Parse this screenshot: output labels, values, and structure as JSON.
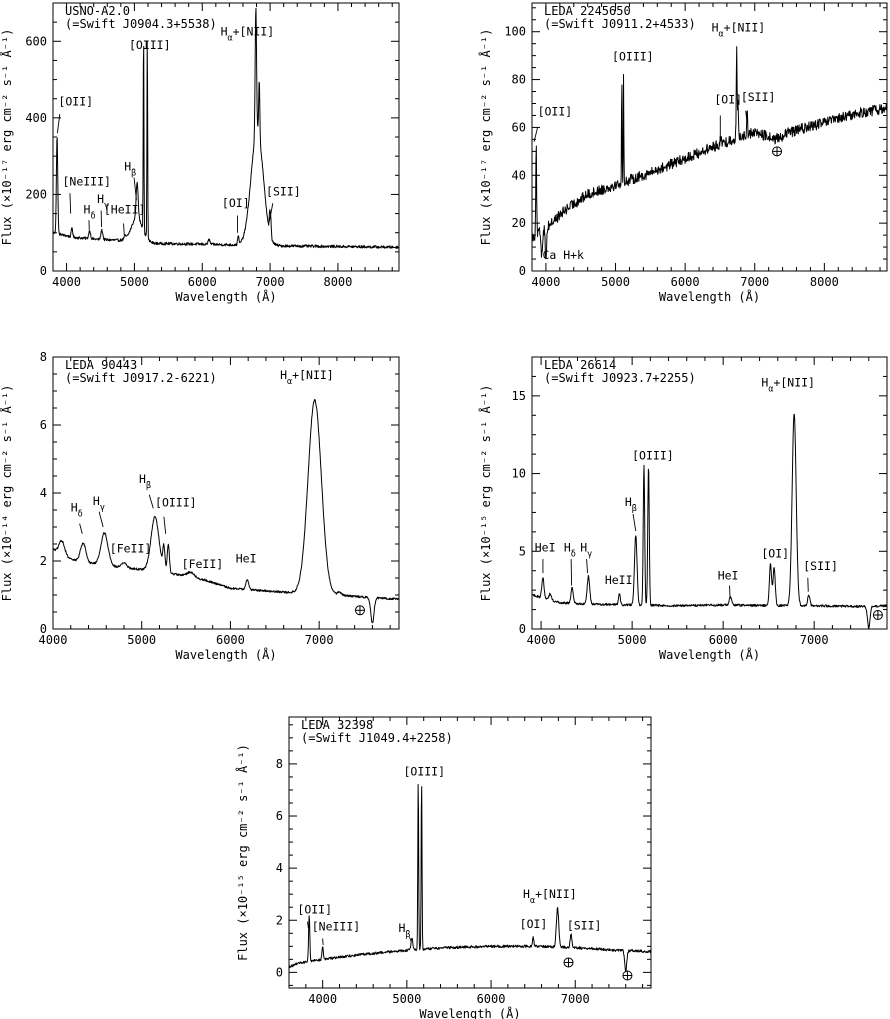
{
  "chart_data": [
    {
      "type": "line",
      "title": "USNO-A2.0",
      "subtitle": "(=Swift J0904.3+5538)",
      "xlabel": "Wavelength (Å)",
      "ylabel": "Flux (×10⁻¹⁷ erg cm⁻² s⁻¹ Å⁻¹)",
      "xlim": [
        3800,
        8900
      ],
      "ylim": [
        0,
        700
      ],
      "xticks": [
        4000,
        5000,
        6000,
        7000,
        8000
      ],
      "yticks": [
        0,
        200,
        400,
        600
      ],
      "continuum": [
        [
          3800,
          100
        ],
        [
          4100,
          88
        ],
        [
          4500,
          82
        ],
        [
          4800,
          80
        ],
        [
          5000,
          80
        ],
        [
          5300,
          72
        ],
        [
          6000,
          70
        ],
        [
          6500,
          68
        ],
        [
          7000,
          66
        ],
        [
          8000,
          64
        ],
        [
          8900,
          62
        ]
      ],
      "lines": [
        {
          "x": 3860,
          "h": 255,
          "w": 10
        },
        {
          "x": 4080,
          "h": 25,
          "w": 10
        },
        {
          "x": 4340,
          "h": 20,
          "w": 14
        },
        {
          "x": 4520,
          "h": 25,
          "w": 14
        },
        {
          "x": 4860,
          "h": 8,
          "w": 12
        },
        {
          "x": 5040,
          "h": 60,
          "w": 80
        },
        {
          "x": 5040,
          "h": 95,
          "w": 14
        },
        {
          "x": 5135,
          "h": 540,
          "w": 5
        },
        {
          "x": 5190,
          "h": 540,
          "w": 5
        },
        {
          "x": 6100,
          "h": 12,
          "w": 14
        },
        {
          "x": 6530,
          "h": 25,
          "w": 8
        },
        {
          "x": 6810,
          "h": 300,
          "w": 90
        },
        {
          "x": 6790,
          "h": 330,
          "w": 10
        },
        {
          "x": 6840,
          "h": 150,
          "w": 8
        },
        {
          "x": 6995,
          "h": 55,
          "w": 7
        },
        {
          "x": 7010,
          "h": 45,
          "w": 7
        }
      ],
      "noise": 3.5,
      "annotations": [
        {
          "text": "[OII]",
          "tx": 3880,
          "ty": 432,
          "lx1": 3900,
          "ly1": 410,
          "lx2": 3865,
          "ly2": 360
        },
        {
          "text": "[NeIII]",
          "tx": 3940,
          "ty": 223,
          "lx1": 4050,
          "ly1": 203,
          "lx2": 4060,
          "ly2": 150
        },
        {
          "text": "Hδ",
          "tx": 4250,
          "ty": 150,
          "lx1": 4330,
          "ly1": 133,
          "lx2": 4335,
          "ly2": 105
        },
        {
          "text": "Hγ",
          "tx": 4450,
          "ty": 178,
          "lx1": 4510,
          "ly1": 158,
          "lx2": 4515,
          "ly2": 115
        },
        {
          "text": "[HeII]",
          "tx": 4550,
          "ty": 150,
          "lx1": 4840,
          "ly1": 124,
          "lx2": 4850,
          "ly2": 95
        },
        {
          "text": "Hβ",
          "tx": 4850,
          "ty": 262,
          "lx1": 4995,
          "ly1": 244,
          "lx2": 5030,
          "ly2": 185
        },
        {
          "text": "[OIII]",
          "tx": 4920,
          "ty": 580,
          "lx1": 5100,
          "ly1": 558,
          "lx2": 5100,
          "ly2": 558
        },
        {
          "text": "[OI]",
          "tx": 6290,
          "ty": 167,
          "lx1": 6520,
          "ly1": 145,
          "lx2": 6520,
          "ly2": 100
        },
        {
          "text": "Hα+[NII]",
          "tx": 6270,
          "ty": 615,
          "lx1": 6790,
          "ly1": 590,
          "lx2": 6790,
          "ly2": 590
        },
        {
          "text": "[SII]",
          "tx": 6940,
          "ty": 197,
          "lx1": 7040,
          "ly1": 177,
          "lx2": 6990,
          "ly2": 130
        }
      ],
      "telluric": []
    },
    {
      "type": "line",
      "title": "LEDA 2245650",
      "subtitle": "(=Swift J0911.2+4533)",
      "xlabel": "Wavelength (Å)",
      "ylabel": "Flux (×10⁻¹⁷ erg cm⁻² s⁻¹ Å⁻¹)",
      "xlim": [
        3800,
        8900
      ],
      "ylim": [
        0,
        112
      ],
      "xticks": [
        4000,
        5000,
        6000,
        7000,
        8000
      ],
      "yticks": [
        0,
        20,
        40,
        60,
        80,
        100
      ],
      "continuum": [
        [
          3800,
          14
        ],
        [
          4000,
          18
        ],
        [
          4300,
          26
        ],
        [
          4600,
          32
        ],
        [
          5000,
          36
        ],
        [
          5500,
          41
        ],
        [
          6000,
          47
        ],
        [
          6500,
          53
        ],
        [
          7000,
          58
        ],
        [
          7300,
          55
        ],
        [
          7500,
          58
        ],
        [
          8000,
          62
        ],
        [
          8500,
          66
        ],
        [
          8900,
          68
        ]
      ],
      "lines": [
        {
          "x": 3860,
          "h": 38,
          "w": 6
        },
        {
          "x": 3940,
          "h": -10,
          "w": 10
        },
        {
          "x": 4000,
          "h": -12,
          "w": 10
        },
        {
          "x": 5090,
          "h": 44,
          "w": 4
        },
        {
          "x": 5115,
          "h": 44,
          "w": 4
        },
        {
          "x": 6510,
          "h": 3,
          "w": 6
        },
        {
          "x": 6740,
          "h": 37,
          "w": 6
        },
        {
          "x": 6760,
          "h": 14,
          "w": 6
        },
        {
          "x": 6890,
          "h": 12,
          "w": 6
        }
      ],
      "noise": 2.2,
      "annotations": [
        {
          "text": "[OII]",
          "tx": 3880,
          "ty": 65,
          "lx1": 3880,
          "ly1": 60,
          "lx2": 3830,
          "ly2": 54
        },
        {
          "text": "Ca H+k",
          "tx": 3950,
          "ty": 5,
          "lx1": 3950,
          "ly1": 9,
          "lx2": 3950,
          "ly2": 9
        },
        {
          "text": "[OIII]",
          "tx": 4950,
          "ty": 88,
          "lx1": 5100,
          "ly1": 84,
          "lx2": 5100,
          "ly2": 84
        },
        {
          "text": "[OI]",
          "tx": 6420,
          "ty": 70,
          "lx1": 6505,
          "ly1": 65,
          "lx2": 6505,
          "ly2": 56
        },
        {
          "text": "Hα+[NII]",
          "tx": 6380,
          "ty": 100,
          "lx1": 6740,
          "ly1": 96,
          "lx2": 6740,
          "ly2": 96
        },
        {
          "text": "[SII]",
          "tx": 6800,
          "ty": 71,
          "lx1": 6870,
          "ly1": 67,
          "lx2": 6890,
          "ly2": 62
        }
      ],
      "telluric": [
        {
          "x": 7320,
          "y": 50
        }
      ]
    },
    {
      "type": "line",
      "title": "LEDA 90443",
      "subtitle": "(=Swift J0917.2-6221)",
      "xlabel": "Wavelength (Å)",
      "ylabel": "Flux (×10⁻¹⁴ erg cm⁻² s⁻¹ Å⁻¹)",
      "xlim": [
        4000,
        7900
      ],
      "ylim": [
        0,
        8
      ],
      "xticks": [
        4000,
        5000,
        6000,
        7000
      ],
      "yticks": [
        0,
        2,
        4,
        6,
        8
      ],
      "continuum": [
        [
          4000,
          2.35
        ],
        [
          4200,
          2.05
        ],
        [
          4500,
          1.9
        ],
        [
          4800,
          1.8
        ],
        [
          5000,
          1.75
        ],
        [
          5400,
          1.6
        ],
        [
          5700,
          1.45
        ],
        [
          6000,
          1.2
        ],
        [
          6400,
          1.12
        ],
        [
          6800,
          1.05
        ],
        [
          7300,
          0.98
        ],
        [
          7600,
          0.92
        ],
        [
          7900,
          0.88
        ]
      ],
      "lines": [
        {
          "x": 4100,
          "h": 0.4,
          "w": 30
        },
        {
          "x": 4340,
          "h": 0.55,
          "w": 30
        },
        {
          "x": 4580,
          "h": 0.95,
          "w": 40
        },
        {
          "x": 4800,
          "h": 0.15,
          "w": 30
        },
        {
          "x": 5150,
          "h": 1.6,
          "w": 45
        },
        {
          "x": 5250,
          "h": 0.7,
          "w": 12
        },
        {
          "x": 5300,
          "h": 0.85,
          "w": 12
        },
        {
          "x": 5550,
          "h": 0.15,
          "w": 40
        },
        {
          "x": 6190,
          "h": 0.3,
          "w": 15
        },
        {
          "x": 6950,
          "h": 5.7,
          "w": 75
        },
        {
          "x": 7230,
          "h": 0.1,
          "w": 20
        },
        {
          "x": 7600,
          "h": -0.75,
          "w": 18
        }
      ],
      "noise": 0.03,
      "annotations": [
        {
          "text": "Hδ",
          "tx": 4200,
          "ty": 3.45,
          "lx1": 4300,
          "ly1": 3.1,
          "lx2": 4330,
          "ly2": 2.8
        },
        {
          "text": "Hγ",
          "tx": 4450,
          "ty": 3.65,
          "lx1": 4520,
          "ly1": 3.45,
          "lx2": 4565,
          "ly2": 3.0
        },
        {
          "text": "[FeII]",
          "tx": 4640,
          "ty": 2.25,
          "lx1": 4800,
          "ly1": 2.0,
          "lx2": 4800,
          "ly2": 2.0
        },
        {
          "text": "Hβ",
          "tx": 4970,
          "ty": 4.3,
          "lx1": 5085,
          "ly1": 3.95,
          "lx2": 5130,
          "ly2": 3.55
        },
        {
          "text": "[OIII]",
          "tx": 5150,
          "ty": 3.6,
          "lx1": 5250,
          "ly1": 3.3,
          "lx2": 5270,
          "ly2": 2.8
        },
        {
          "text": "[FeII]",
          "tx": 5450,
          "ty": 1.8,
          "lx1": 5500,
          "ly1": 1.65,
          "lx2": 5500,
          "ly2": 1.65
        },
        {
          "text": "HeI",
          "tx": 6060,
          "ty": 1.95,
          "lx1": 6190,
          "ly1": 1.75,
          "lx2": 6190,
          "ly2": 1.75
        },
        {
          "text": "Hα+[NII]",
          "tx": 6560,
          "ty": 7.35,
          "lx1": 6950,
          "ly1": 6.95,
          "lx2": 6950,
          "ly2": 6.95
        }
      ],
      "telluric": [
        {
          "x": 7460,
          "y": 0.55
        }
      ]
    },
    {
      "type": "line",
      "title": "LEDA 26614",
      "subtitle": "(=Swift J0923.7+2255)",
      "xlabel": "Wavelength (Å)",
      "ylabel": "Flux (×10⁻¹⁵ erg cm⁻² s⁻¹ Å⁻¹)",
      "xlim": [
        3900,
        7800
      ],
      "ylim": [
        0,
        17.5
      ],
      "xticks": [
        4000,
        5000,
        6000,
        7000
      ],
      "yticks": [
        0,
        5,
        10,
        15
      ],
      "continuum": [
        [
          3900,
          2.2
        ],
        [
          4200,
          1.7
        ],
        [
          4500,
          1.6
        ],
        [
          5000,
          1.55
        ],
        [
          5500,
          1.5
        ],
        [
          6000,
          1.55
        ],
        [
          6500,
          1.5
        ],
        [
          7000,
          1.5
        ],
        [
          7500,
          1.45
        ],
        [
          7800,
          1.5
        ]
      ],
      "lines": [
        {
          "x": 4020,
          "h": 1.3,
          "w": 12
        },
        {
          "x": 4100,
          "h": 0.4,
          "w": 12
        },
        {
          "x": 4340,
          "h": 1.0,
          "w": 12
        },
        {
          "x": 4520,
          "h": 1.8,
          "w": 14
        },
        {
          "x": 4860,
          "h": 0.7,
          "w": 10
        },
        {
          "x": 5040,
          "h": 4.5,
          "w": 14
        },
        {
          "x": 5130,
          "h": 9.0,
          "w": 8
        },
        {
          "x": 5180,
          "h": 9.0,
          "w": 8
        },
        {
          "x": 6080,
          "h": 0.5,
          "w": 14
        },
        {
          "x": 6520,
          "h": 2.7,
          "w": 12
        },
        {
          "x": 6560,
          "h": 2.5,
          "w": 12
        },
        {
          "x": 6780,
          "h": 12.4,
          "w": 22
        },
        {
          "x": 6940,
          "h": 0.7,
          "w": 12
        },
        {
          "x": 7600,
          "h": -1.4,
          "w": 14
        }
      ],
      "noise": 0.07,
      "annotations": [
        {
          "text": "HeI",
          "tx": 3930,
          "ty": 5.0,
          "lx1": 4020,
          "ly1": 4.5,
          "lx2": 4020,
          "ly2": 3.6
        },
        {
          "text": "Hδ",
          "tx": 4250,
          "ty": 5.0,
          "lx1": 4330,
          "ly1": 4.5,
          "lx2": 4335,
          "ly2": 2.8
        },
        {
          "text": "Hγ",
          "tx": 4430,
          "ty": 5.0,
          "lx1": 4500,
          "ly1": 4.5,
          "lx2": 4510,
          "ly2": 3.6
        },
        {
          "text": "HeII",
          "tx": 4700,
          "ty": 2.9,
          "lx1": 4850,
          "ly1": 2.4,
          "lx2": 4850,
          "ly2": 2.4
        },
        {
          "text": "Hβ",
          "tx": 4920,
          "ty": 7.9,
          "lx1": 5010,
          "ly1": 7.4,
          "lx2": 5040,
          "ly2": 6.3
        },
        {
          "text": "[OIII]",
          "tx": 5000,
          "ty": 10.9,
          "lx1": 5160,
          "ly1": 10.5,
          "lx2": 5160,
          "ly2": 10.5
        },
        {
          "text": "HeI",
          "tx": 5940,
          "ty": 3.2,
          "lx1": 6070,
          "ly1": 2.8,
          "lx2": 6075,
          "ly2": 2.1
        },
        {
          "text": "[OI]",
          "tx": 6420,
          "ty": 4.6,
          "lx1": 6540,
          "ly1": 4.3,
          "lx2": 6540,
          "ly2": 4.3
        },
        {
          "text": "Hα+[NII]",
          "tx": 6420,
          "ty": 15.6,
          "lx1": 6780,
          "ly1": 15.0,
          "lx2": 6780,
          "ly2": 15.0
        },
        {
          "text": "[SII]",
          "tx": 6880,
          "ty": 3.8,
          "lx1": 6930,
          "ly1": 3.3,
          "lx2": 6935,
          "ly2": 2.4
        }
      ],
      "telluric": [
        {
          "x": 7700,
          "y": 0.9
        }
      ]
    },
    {
      "type": "line",
      "title": "LEDA 32398",
      "subtitle": "(=Swift J1049.4+2258)",
      "xlabel": "Wavelength (Å)",
      "ylabel": "Flux (×10⁻¹⁵ erg cm⁻² s⁻¹ Å⁻¹)",
      "xlim": [
        3600,
        7900
      ],
      "ylim": [
        -0.6,
        9.8
      ],
      "xticks": [
        4000,
        5000,
        6000,
        7000
      ],
      "yticks": [
        0,
        2,
        4,
        6,
        8
      ],
      "continuum": [
        [
          3600,
          0.2
        ],
        [
          3700,
          0.35
        ],
        [
          4000,
          0.5
        ],
        [
          4500,
          0.7
        ],
        [
          5000,
          0.85
        ],
        [
          5500,
          0.95
        ],
        [
          6000,
          1.0
        ],
        [
          6500,
          1.0
        ],
        [
          7000,
          0.95
        ],
        [
          7500,
          0.85
        ],
        [
          7900,
          0.8
        ]
      ],
      "lines": [
        {
          "x": 3840,
          "h": 1.8,
          "w": 7
        },
        {
          "x": 4000,
          "h": 0.5,
          "w": 8
        },
        {
          "x": 5060,
          "h": 0.45,
          "w": 10
        },
        {
          "x": 5135,
          "h": 6.6,
          "w": 5
        },
        {
          "x": 5175,
          "h": 6.6,
          "w": 5
        },
        {
          "x": 6500,
          "h": 0.35,
          "w": 8
        },
        {
          "x": 6790,
          "h": 1.5,
          "w": 14
        },
        {
          "x": 6950,
          "h": 0.55,
          "w": 10
        },
        {
          "x": 7600,
          "h": -0.8,
          "w": 12
        }
      ],
      "noise": 0.05,
      "annotations": [
        {
          "text": "[OII]",
          "tx": 3700,
          "ty": 2.25,
          "lx1": 3820,
          "ly1": 1.95,
          "lx2": 3830,
          "ly2": 1.7
        },
        {
          "text": "[NeIII]",
          "tx": 3870,
          "ty": 1.6,
          "lx1": 4000,
          "ly1": 1.3,
          "lx2": 4005,
          "ly2": 1.05
        },
        {
          "text": "Hβ",
          "tx": 4900,
          "ty": 1.55,
          "lx1": 5030,
          "ly1": 1.35,
          "lx2": 5050,
          "ly2": 1.2
        },
        {
          "text": "[OIII]",
          "tx": 4960,
          "ty": 7.55,
          "lx1": 5150,
          "ly1": 7.2,
          "lx2": 5150,
          "ly2": 7.2
        },
        {
          "text": "[OI]",
          "tx": 6340,
          "ty": 1.7,
          "lx1": 6490,
          "ly1": 1.35,
          "lx2": 6490,
          "ly2": 1.35
        },
        {
          "text": "Hα+[NII]",
          "tx": 6380,
          "ty": 2.85,
          "lx1": 6780,
          "ly1": 2.5,
          "lx2": 6780,
          "ly2": 2.5
        },
        {
          "text": "[SII]",
          "tx": 6900,
          "ty": 1.65,
          "lx1": 6950,
          "ly1": 1.4,
          "lx2": 6950,
          "ly2": 1.4
        }
      ],
      "telluric": [
        {
          "x": 6920,
          "y": 0.38
        },
        {
          "x": 7620,
          "y": -0.12
        }
      ]
    }
  ]
}
